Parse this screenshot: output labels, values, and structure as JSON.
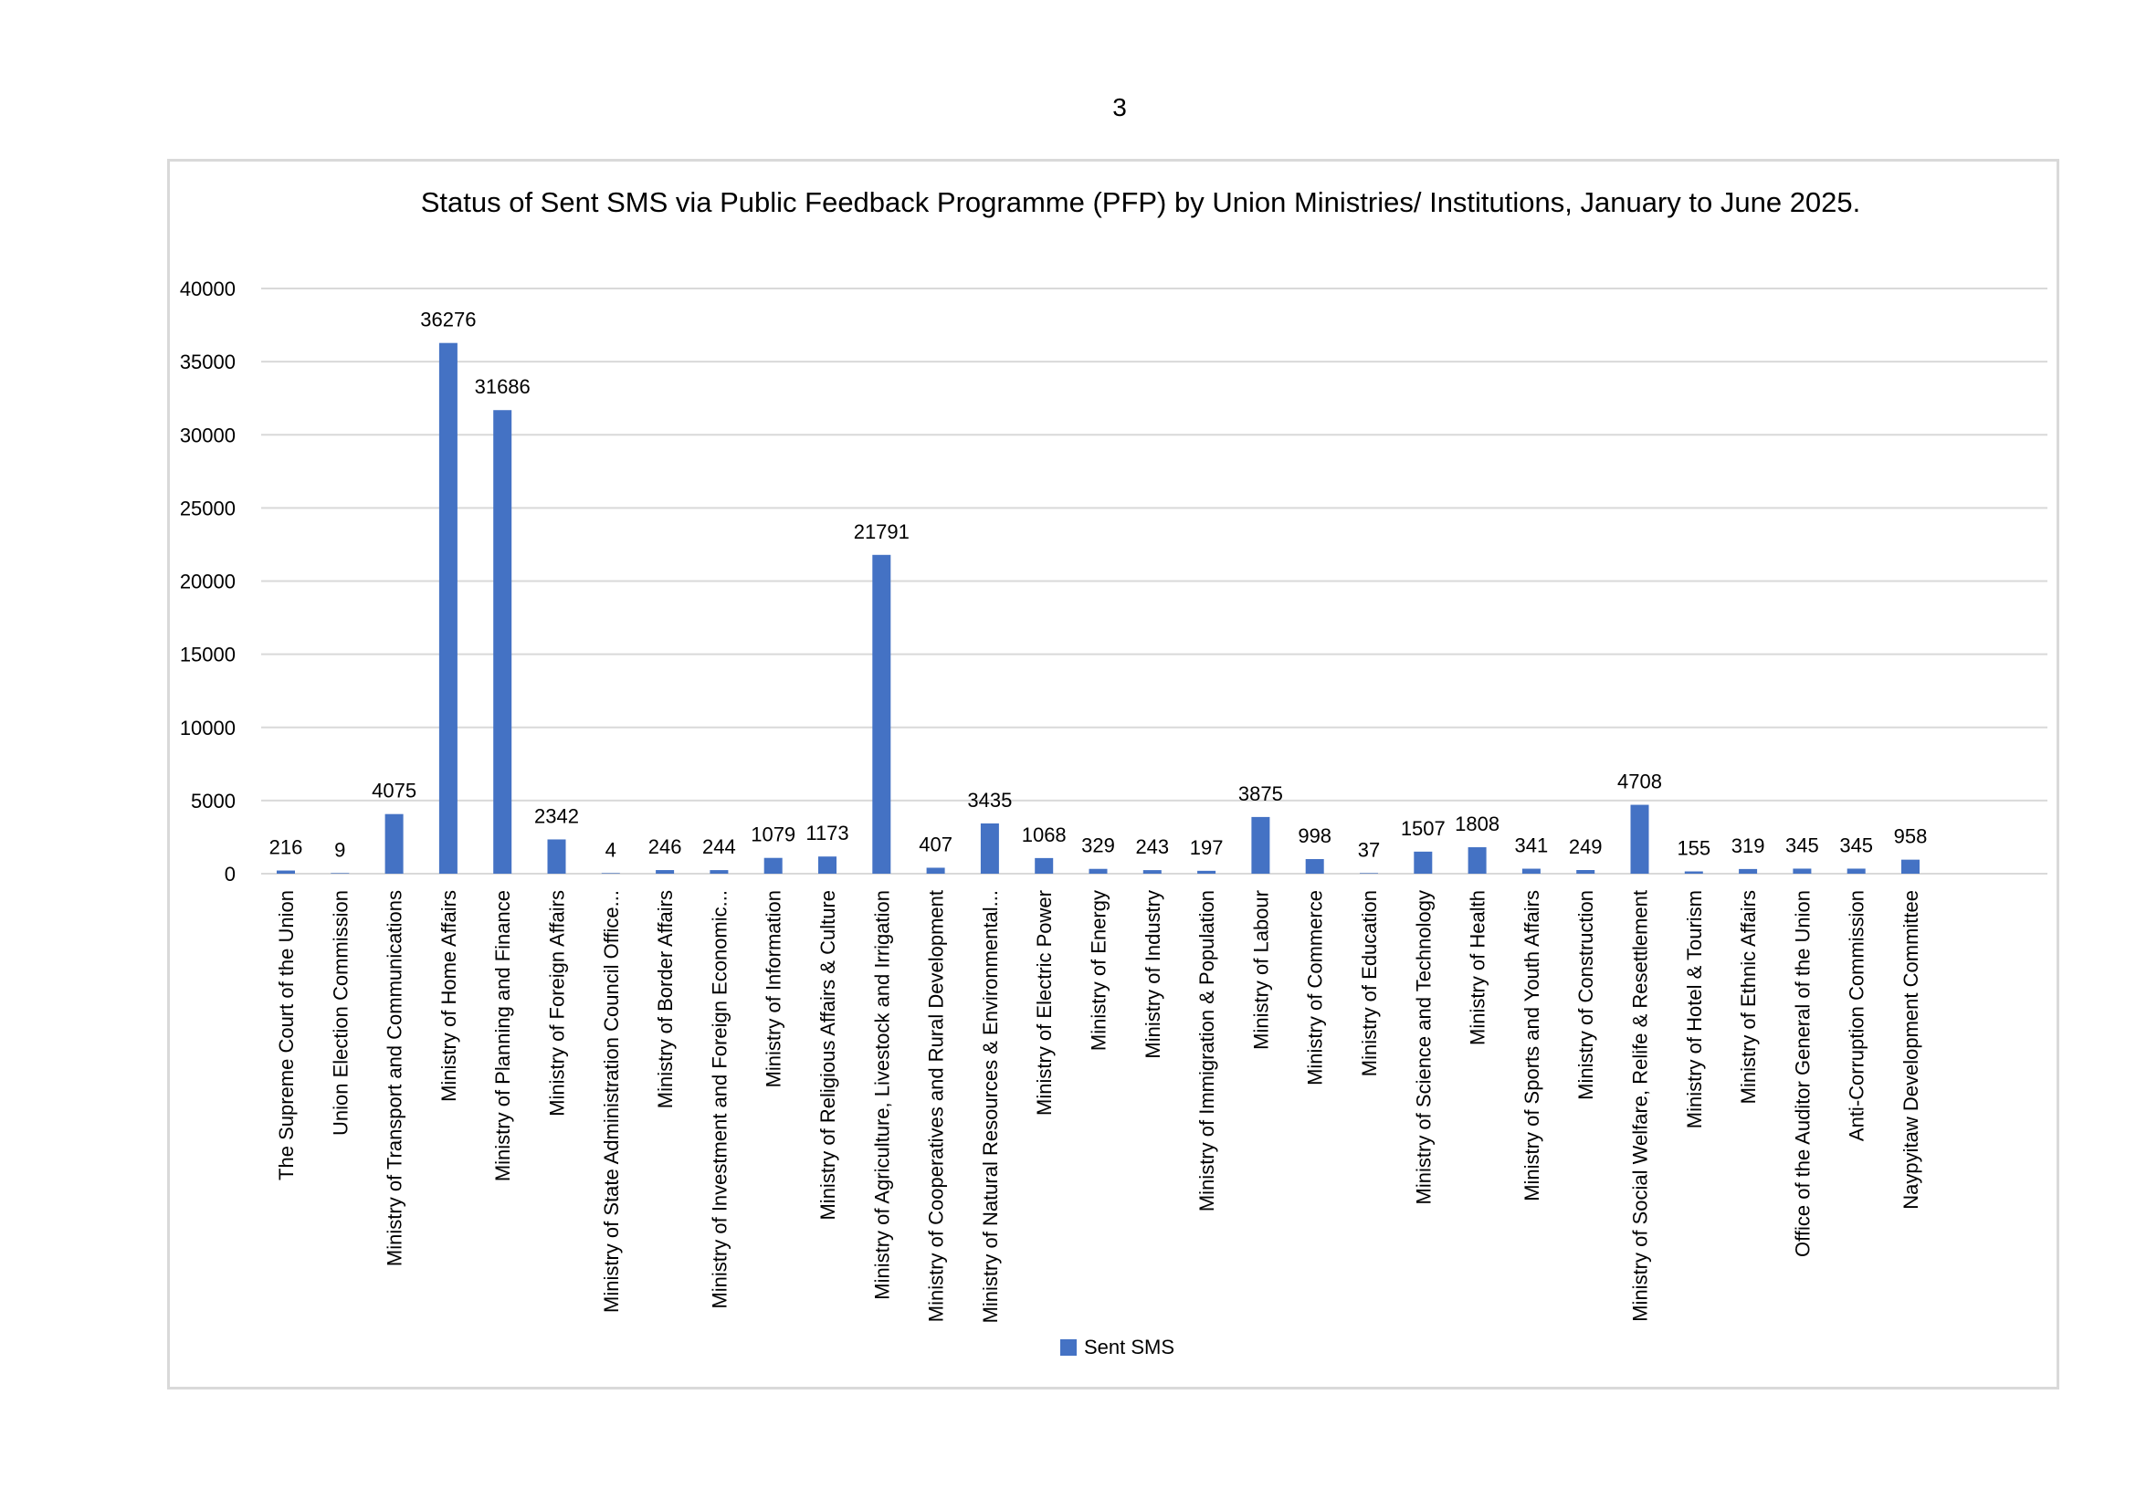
{
  "page": {
    "number": "3"
  },
  "chart_data": {
    "type": "bar",
    "title": "Status of Sent SMS via Public Feedback Programme (PFP) by Union Ministries/ Institutions, January to June 2025.",
    "xlabel": "",
    "ylabel": "",
    "ylim": [
      0,
      40000
    ],
    "yticks": [
      "0",
      "5000",
      "10000",
      "15000",
      "20000",
      "25000",
      "30000",
      "35000",
      "40000"
    ],
    "grid": true,
    "legend_position": "bottom",
    "bar_color": "#4472c4",
    "grid_color": "#d9d9d9",
    "categories": [
      "The Supreme Court of the Union",
      "Union Election Commission",
      "Ministry of Transport and Communications",
      "Ministry of Home Affairs",
      "Ministry of Planning and Finance",
      "Ministry of Foreign Affairs",
      "Ministry of State Administration Council Office...",
      "Ministry of Border Affairs",
      "Ministry of Investment and Foreign Economic...",
      "Ministry of Information",
      "Ministry of Religious Affairs & Culture",
      "Ministry of Agriculture, Livestock and Irrigation",
      "Ministry of Cooperatives and Rural Development",
      "Ministry of Natural Resources & Environmental...",
      "Ministry of Electric Power",
      "Ministry of Energy",
      "Ministry of Industry",
      "Ministry of Immigration & Population",
      "Ministry of Labour",
      "Ministry of Commerce",
      "Ministry of Education",
      "Ministry of Science and Technology",
      "Ministry of Health",
      "Ministry of Sports and Youth Affairs",
      "Ministry of Construction",
      "Ministry of Social Welfare, Relife & Resettlement",
      "Ministry of Hotel & Tourism",
      "Ministry of Ethnic Affairs",
      "Office of the Auditor General of the Union",
      "Anti-Corruption Commission",
      "Naypyitaw Development Committee"
    ],
    "series": [
      {
        "name": "Sent SMS",
        "values": [
          216,
          9,
          4075,
          36276,
          31686,
          2342,
          4,
          246,
          244,
          1079,
          1173,
          21791,
          407,
          3435,
          1068,
          329,
          243,
          197,
          3875,
          998,
          37,
          1507,
          1808,
          341,
          249,
          4708,
          155,
          319,
          345,
          345,
          958
        ]
      }
    ]
  }
}
